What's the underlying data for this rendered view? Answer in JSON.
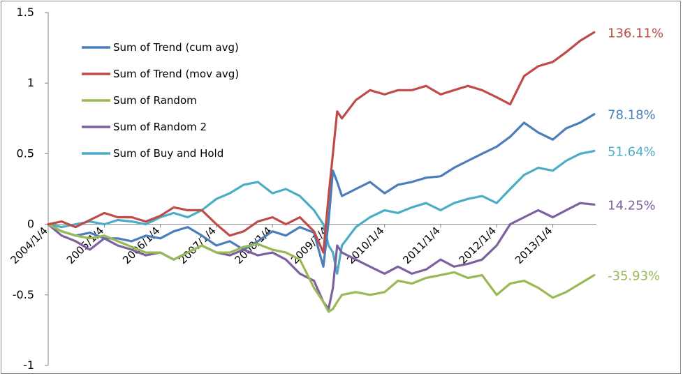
{
  "chart_data": {
    "type": "line",
    "title": "",
    "xlabel": "",
    "ylabel": "",
    "ylim": [
      -1,
      1.5
    ],
    "yticks": [
      "1.5",
      "1",
      "0.5",
      "0",
      "-0.5",
      "-1"
    ],
    "xticks": [
      "2004/1/4",
      "2005/1/4",
      "2006/1/4",
      "2007/1/4",
      "2008/1/4",
      "2009/1/4",
      "2010/1/4",
      "2011/1/4",
      "2012/1/4",
      "2013/1/4"
    ],
    "grid": false,
    "legend_position": "top-left",
    "x": [
      "2004/1/4",
      "2004/4/1",
      "2004/7/1",
      "2004/10/1",
      "2005/1/4",
      "2005/4/1",
      "2005/7/1",
      "2005/10/1",
      "2006/1/4",
      "2006/4/1",
      "2006/7/1",
      "2006/10/1",
      "2007/1/4",
      "2007/4/1",
      "2007/7/1",
      "2007/10/1",
      "2008/1/4",
      "2008/4/1",
      "2008/7/1",
      "2008/10/1",
      "2008/12/1",
      "2009/1/4",
      "2009/2/1",
      "2009/3/1",
      "2009/4/1",
      "2009/7/1",
      "2009/10/1",
      "2010/1/4",
      "2010/4/1",
      "2010/7/1",
      "2010/10/1",
      "2011/1/4",
      "2011/4/1",
      "2011/7/1",
      "2011/10/1",
      "2012/1/4",
      "2012/4/1",
      "2012/7/1",
      "2012/10/1",
      "2013/1/4",
      "2013/4/1",
      "2013/7/1",
      "2013/10/1"
    ],
    "series": [
      {
        "name": "Sum of Trend (cum avg)",
        "color": "#4a7ebb",
        "end_label": "78.18%",
        "values": [
          0,
          -0.05,
          -0.08,
          -0.06,
          -0.1,
          -0.1,
          -0.12,
          -0.08,
          -0.1,
          -0.05,
          -0.02,
          -0.08,
          -0.15,
          -0.12,
          -0.18,
          -0.12,
          -0.05,
          -0.08,
          -0.02,
          -0.06,
          -0.3,
          0.02,
          0.38,
          0.3,
          0.2,
          0.25,
          0.3,
          0.22,
          0.28,
          0.3,
          0.33,
          0.34,
          0.4,
          0.45,
          0.5,
          0.55,
          0.62,
          0.72,
          0.65,
          0.6,
          0.68,
          0.72,
          0.78
        ]
      },
      {
        "name": "Sum of Trend (mov avg)",
        "color": "#be4b48",
        "end_label": "136.11%",
        "values": [
          0,
          0.02,
          -0.02,
          0.03,
          0.08,
          0.05,
          0.05,
          0.02,
          0.06,
          0.12,
          0.1,
          0.1,
          0.0,
          -0.08,
          -0.05,
          0.02,
          0.05,
          0.0,
          0.05,
          -0.05,
          -0.2,
          0.2,
          0.5,
          0.8,
          0.75,
          0.88,
          0.95,
          0.92,
          0.95,
          0.95,
          0.98,
          0.92,
          0.95,
          0.98,
          0.95,
          0.9,
          0.85,
          1.05,
          1.12,
          1.15,
          1.22,
          1.3,
          1.36
        ]
      },
      {
        "name": "Sum of Random",
        "color": "#98b954",
        "end_label": "-35.93%",
        "values": [
          0,
          -0.05,
          -0.08,
          -0.1,
          -0.08,
          -0.12,
          -0.16,
          -0.2,
          -0.2,
          -0.25,
          -0.2,
          -0.15,
          -0.2,
          -0.2,
          -0.16,
          -0.14,
          -0.18,
          -0.2,
          -0.25,
          -0.45,
          -0.55,
          -0.62,
          -0.6,
          -0.55,
          -0.5,
          -0.48,
          -0.5,
          -0.48,
          -0.4,
          -0.42,
          -0.38,
          -0.36,
          -0.34,
          -0.38,
          -0.36,
          -0.5,
          -0.42,
          -0.4,
          -0.45,
          -0.52,
          -0.48,
          -0.42,
          -0.36
        ]
      },
      {
        "name": "Sum of Random 2",
        "color": "#7d60a0",
        "end_label": "14.25%",
        "values": [
          0,
          -0.08,
          -0.12,
          -0.18,
          -0.1,
          -0.15,
          -0.18,
          -0.22,
          -0.2,
          -0.25,
          -0.2,
          -0.15,
          -0.2,
          -0.22,
          -0.18,
          -0.22,
          -0.2,
          -0.25,
          -0.35,
          -0.4,
          -0.55,
          -0.6,
          -0.45,
          -0.15,
          -0.2,
          -0.25,
          -0.3,
          -0.35,
          -0.3,
          -0.35,
          -0.32,
          -0.25,
          -0.3,
          -0.28,
          -0.25,
          -0.15,
          0.0,
          0.05,
          0.1,
          0.05,
          0.1,
          0.15,
          0.14
        ]
      },
      {
        "name": "Sum of Buy and Hold",
        "color": "#4bacc6",
        "end_label": "51.64%",
        "values": [
          0,
          -0.02,
          0.0,
          0.02,
          0.0,
          0.03,
          0.02,
          0.0,
          0.05,
          0.08,
          0.05,
          0.1,
          0.18,
          0.22,
          0.28,
          0.3,
          0.22,
          0.25,
          0.2,
          0.1,
          0.0,
          -0.15,
          -0.2,
          -0.35,
          -0.15,
          -0.02,
          0.05,
          0.1,
          0.08,
          0.12,
          0.15,
          0.1,
          0.15,
          0.18,
          0.2,
          0.15,
          0.25,
          0.35,
          0.4,
          0.38,
          0.45,
          0.5,
          0.52
        ]
      }
    ]
  }
}
